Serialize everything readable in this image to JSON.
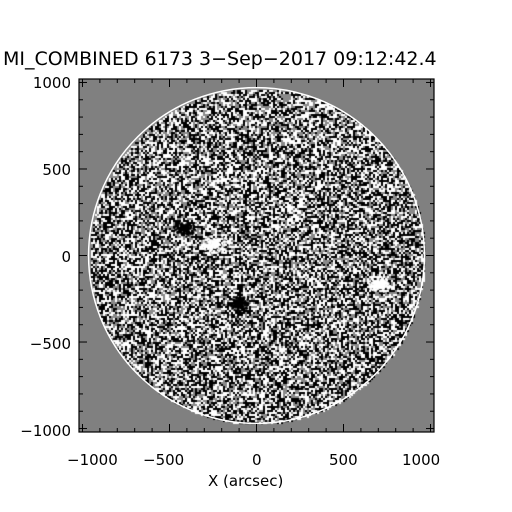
{
  "figure": {
    "title": "MI_COMBINED 6173  3−Sep−2017 09:12:42.4",
    "xlabel": "X (arcsec)",
    "ylabel": "",
    "background_color": "#808080",
    "disk_radius_arcsec": 965,
    "xlim": [
      -1020,
      1020
    ],
    "ylim": [
      -1020,
      1020
    ]
  },
  "axis": {
    "x_ticks": [
      -1000,
      -500,
      0,
      500,
      1000
    ],
    "y_ticks": [
      1000,
      500,
      0,
      -500,
      -1000
    ],
    "x_tick_labels": [
      "−1000",
      "−500",
      "0",
      "500",
      "1000"
    ],
    "y_tick_labels": [
      "1000",
      "500",
      "0",
      "−500",
      "−1000"
    ]
  },
  "features": [
    {
      "name": "bright-white-region",
      "x_arcsec": -240,
      "y_arcsec": 70,
      "polarity": "white"
    },
    {
      "name": "dark-active-region-ne",
      "x_arcsec": -420,
      "y_arcsec": 160,
      "polarity": "black"
    },
    {
      "name": "dark-active-region-s",
      "x_arcsec": -110,
      "y_arcsec": -270,
      "polarity": "black"
    },
    {
      "name": "faint-plage-west",
      "x_arcsec": 700,
      "y_arcsec": -160,
      "polarity": "white"
    }
  ]
}
